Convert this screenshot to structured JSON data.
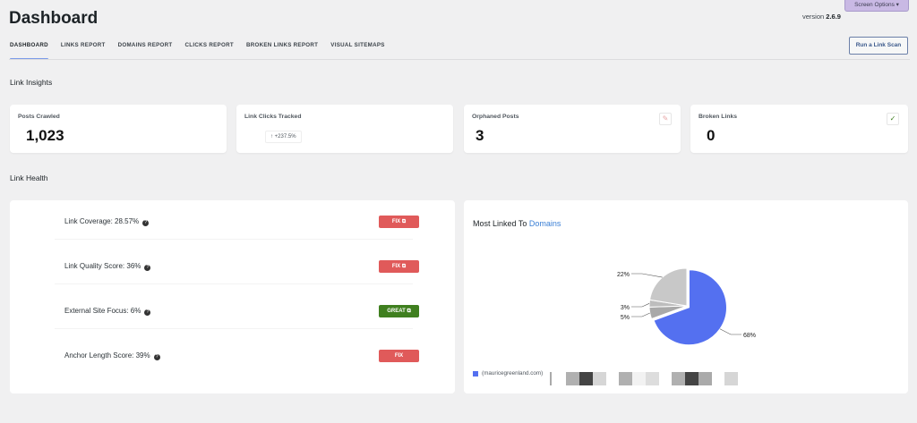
{
  "header": {
    "title": "Dashboard",
    "screen_options": "Screen Options ▾",
    "version_label": "version",
    "version": "2.6.9",
    "scan_button": "Run a Link Scan"
  },
  "tabs": [
    {
      "label": "DASHBOARD",
      "active": true
    },
    {
      "label": "LINKS REPORT"
    },
    {
      "label": "DOMAINS REPORT"
    },
    {
      "label": "CLICKS REPORT"
    },
    {
      "label": "BROKEN LINKS REPORT"
    },
    {
      "label": "VISUAL SITEMAPS"
    }
  ],
  "insights": {
    "title": "Link Insights",
    "cards": [
      {
        "label": "Posts Crawled",
        "value": "1,023"
      },
      {
        "label": "Link Clicks Tracked",
        "change": "+237.5%",
        "change_icon": "arrow-up-icon"
      },
      {
        "label": "Orphaned Posts",
        "value": "3",
        "icon": "wrench-icon"
      },
      {
        "label": "Broken Links",
        "value": "0",
        "icon": "check-icon"
      }
    ]
  },
  "health": {
    "title": "Link Health",
    "rows": [
      {
        "label": "Link Coverage: 28.57%",
        "button": "FIX ⧉",
        "status": "fix"
      },
      {
        "label": "Link Quality Score: 36%",
        "button": "FIX ⧉",
        "status": "fix"
      },
      {
        "label": "External Site Focus: 6%",
        "button": "GREAT ⧉",
        "status": "great"
      },
      {
        "label": "Anchor Length Score: 39%",
        "button": "FIX",
        "status": "fix"
      }
    ],
    "colors": {
      "fix": "#e05a5a",
      "great": "#3f7f1f"
    }
  },
  "chart_data": {
    "type": "pie",
    "title_prefix": "Most Linked To",
    "title_link": "Domains",
    "slices": [
      {
        "name": "(mauricegreenland.com)",
        "value": 68,
        "label": "68%",
        "color": "#5470f0"
      },
      {
        "value": 5,
        "label": "5%",
        "color": "#a9a9a9"
      },
      {
        "value": 3,
        "label": "3%",
        "color": "#bdbdbd"
      },
      {
        "value": 22,
        "label": "22%",
        "color": "#c8c8c8"
      }
    ],
    "legend": "bottom-left"
  }
}
